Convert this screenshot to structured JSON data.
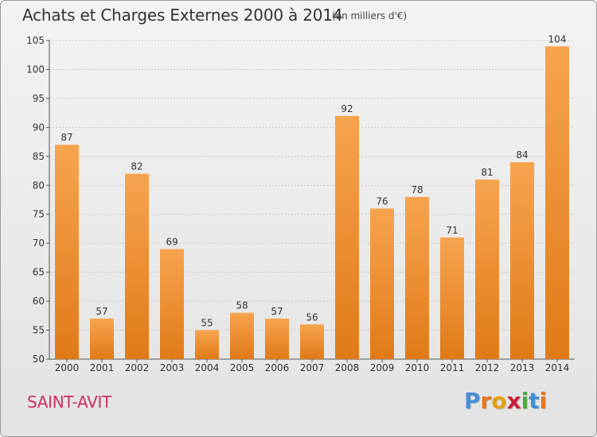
{
  "header": {
    "title": "Achats et Charges Externes 2000 à 2014",
    "subtitle": "(en milliers d'€)"
  },
  "footer": {
    "commune": "SAINT-AVIT",
    "logo_letters": [
      "P",
      "r",
      "o",
      "x",
      "i",
      "t",
      "i"
    ]
  },
  "colors": {
    "bar_light": "#f7a44f",
    "bar_dark": "#e07a18",
    "commune": "#cc2f66",
    "logo": [
      "#4a8fd6",
      "#e8731a",
      "#e2a011",
      "#c8203b",
      "#4bab3a",
      "#3f8fd4",
      "#e8731a"
    ]
  },
  "chart_data": {
    "type": "bar",
    "title": "Achats et Charges Externes 2000 à 2014",
    "subtitle": "(en milliers d'€)",
    "categories": [
      "2000",
      "2001",
      "2002",
      "2003",
      "2004",
      "2005",
      "2006",
      "2007",
      "2008",
      "2009",
      "2010",
      "2011",
      "2012",
      "2013",
      "2014"
    ],
    "values": [
      87,
      57,
      82,
      69,
      55,
      58,
      57,
      56,
      92,
      76,
      78,
      71,
      81,
      84,
      104
    ],
    "ylim": [
      50,
      105
    ],
    "yticks": [
      50,
      55,
      60,
      65,
      70,
      75,
      80,
      85,
      90,
      95,
      100,
      105
    ],
    "grid": true,
    "xlabel": "",
    "ylabel": ""
  }
}
